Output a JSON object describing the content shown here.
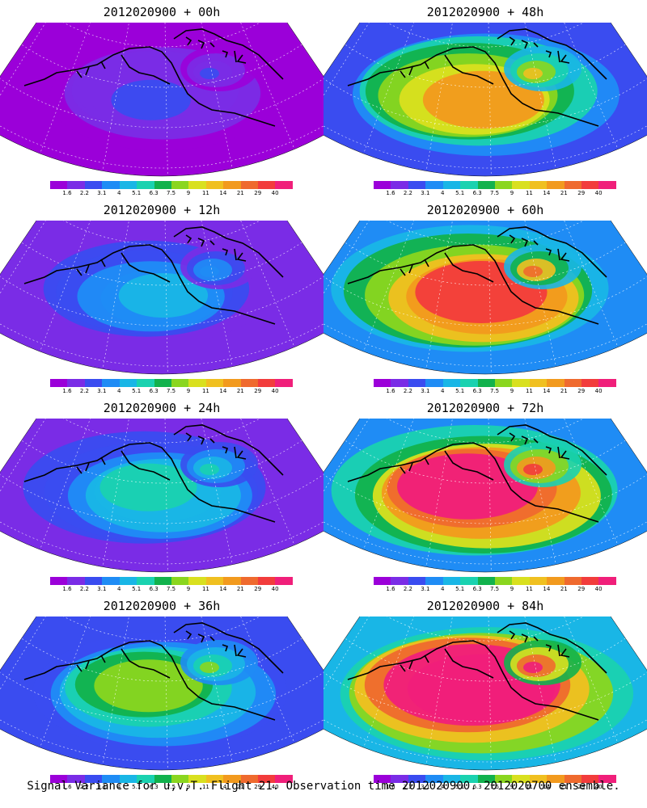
{
  "panels": [
    {
      "title": "2012020900 + 00h",
      "level": 0.12
    },
    {
      "title": "2012020900 + 48h",
      "level": 0.55
    },
    {
      "title": "2012020900 + 12h",
      "level": 0.22
    },
    {
      "title": "2012020900 + 60h",
      "level": 0.66
    },
    {
      "title": "2012020900 + 24h",
      "level": 0.3
    },
    {
      "title": "2012020900 + 72h",
      "level": 0.75
    },
    {
      "title": "2012020900 + 36h",
      "level": 0.42
    },
    {
      "title": "2012020900 + 84h",
      "level": 0.82
    }
  ],
  "colorbar": {
    "colors": [
      "#9b00d9",
      "#7a2ce6",
      "#3a4cf0",
      "#1f8cf5",
      "#19b6e6",
      "#1ad2b0",
      "#12b24d",
      "#8ad61f",
      "#d9e01f",
      "#f0c020",
      "#f29a1e",
      "#ef6a2e",
      "#f23c3c",
      "#f01f7a"
    ],
    "labels": [
      "1.6",
      "2.2",
      "3.1",
      "4",
      "5.1",
      "6.3",
      "7.5",
      "9",
      "11",
      "14",
      "21",
      "29",
      "40"
    ]
  },
  "caption": "Signal Variance for u,v,T. Flight 21. Observation time 2012020900. 2012020700 ensemble.",
  "icons": {
    "panel-map": "polar-sector-map",
    "coastline": "coastline-lines"
  }
}
